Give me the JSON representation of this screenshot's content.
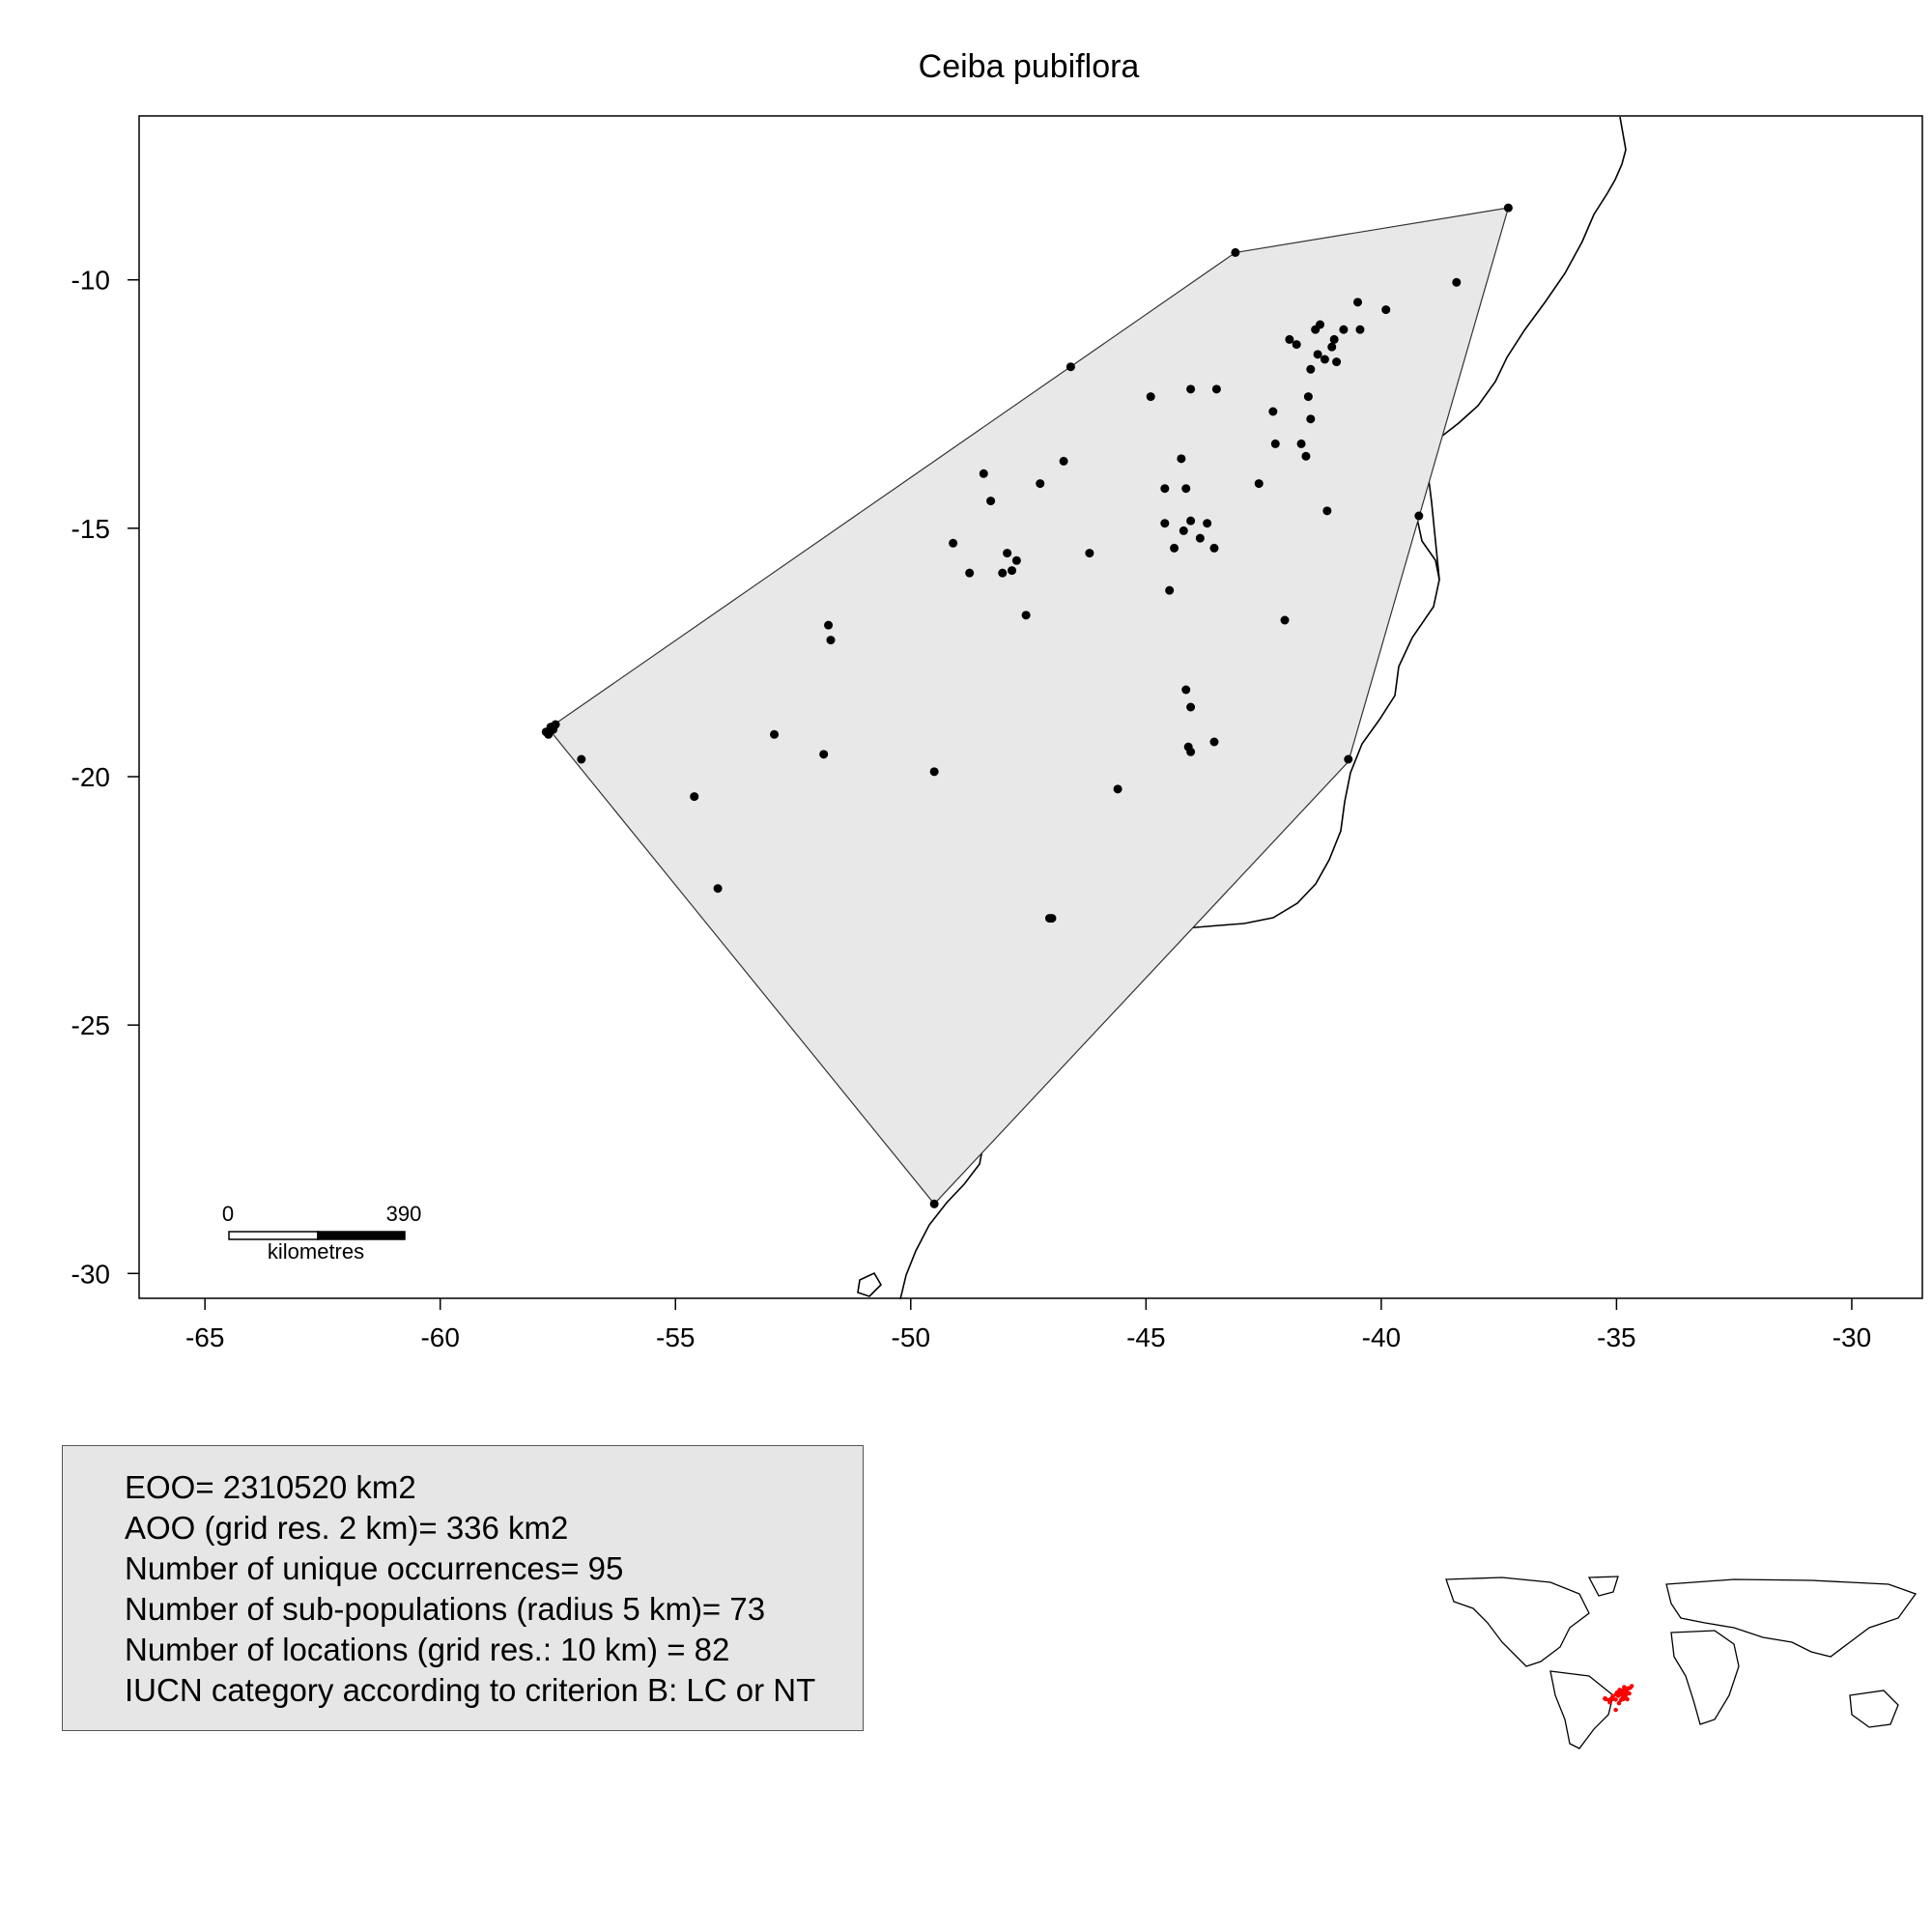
{
  "title": "Ceiba pubiflora",
  "axes": {
    "x_ticks": [
      "-65",
      "-60",
      "-55",
      "-50",
      "-45",
      "-40",
      "-35",
      "-30"
    ],
    "y_ticks": [
      "-10",
      "-15",
      "-20",
      "-25",
      "-30"
    ],
    "xlim": [
      -66.4,
      -28.5
    ],
    "ylim": [
      -30.5,
      -6.7
    ]
  },
  "scale_bar": {
    "start_label": "0",
    "end_label": "390",
    "unit_label": "kilometres"
  },
  "stats": {
    "eoo": "EOO= 2310520 km2",
    "aoo": "AOO (grid res. 2 km)= 336 km2",
    "unique_occurrences": "Number of unique occurrences= 95",
    "subpopulations": "Number of sub-populations (radius 5 km)= 73",
    "locations": "Number of locations (grid res.: 10  km) = 82",
    "iucn": "IUCN category according to criterion B: LC or NT"
  },
  "colors": {
    "hull_fill": "#e8e8e8",
    "hull_stroke": "#333333",
    "points": "#000000",
    "inset_points": "#ff0000",
    "stats_bg": "#e6e6e6"
  },
  "chart_data": {
    "type": "scatter",
    "title": "Ceiba pubiflora",
    "xlabel": "",
    "ylabel": "",
    "xlim": [
      -66.4,
      -28.5
    ],
    "ylim": [
      -30.5,
      -6.7
    ],
    "hull": [
      [
        -43.1,
        -9.45
      ],
      [
        -37.3,
        -8.55
      ],
      [
        -40.7,
        -19.7
      ],
      [
        -49.5,
        -28.6
      ],
      [
        -57.6,
        -19.15
      ],
      [
        -57.5,
        -18.9
      ]
    ],
    "points": [
      [
        -43.1,
        -9.45
      ],
      [
        -37.3,
        -8.55
      ],
      [
        -38.4,
        -10.05
      ],
      [
        -40.5,
        -10.45
      ],
      [
        -39.9,
        -10.6
      ],
      [
        -40.45,
        -11.0
      ],
      [
        -40.8,
        -11.0
      ],
      [
        -41.3,
        -10.9
      ],
      [
        -41.4,
        -11.0
      ],
      [
        -41.0,
        -11.2
      ],
      [
        -41.05,
        -11.35
      ],
      [
        -41.8,
        -11.3
      ],
      [
        -41.95,
        -11.2
      ],
      [
        -41.35,
        -11.5
      ],
      [
        -41.2,
        -11.6
      ],
      [
        -40.95,
        -11.65
      ],
      [
        -41.5,
        -11.8
      ],
      [
        -46.6,
        -11.75
      ],
      [
        -44.9,
        -12.35
      ],
      [
        -44.05,
        -12.2
      ],
      [
        -43.5,
        -12.2
      ],
      [
        -41.55,
        -12.35
      ],
      [
        -42.3,
        -12.65
      ],
      [
        -41.5,
        -12.8
      ],
      [
        -42.25,
        -13.3
      ],
      [
        -41.7,
        -13.3
      ],
      [
        -41.6,
        -13.55
      ],
      [
        -44.25,
        -13.6
      ],
      [
        -46.75,
        -13.65
      ],
      [
        -48.45,
        -13.9
      ],
      [
        -47.25,
        -14.1
      ],
      [
        -42.6,
        -14.1
      ],
      [
        -44.6,
        -14.2
      ],
      [
        -44.15,
        -14.2
      ],
      [
        -48.3,
        -14.45
      ],
      [
        -41.15,
        -14.65
      ],
      [
        -39.2,
        -14.75
      ],
      [
        -44.05,
        -14.85
      ],
      [
        -43.7,
        -14.9
      ],
      [
        -44.6,
        -14.9
      ],
      [
        -44.2,
        -15.05
      ],
      [
        -43.85,
        -15.2
      ],
      [
        -49.1,
        -15.3
      ],
      [
        -44.4,
        -15.4
      ],
      [
        -43.55,
        -15.4
      ],
      [
        -47.95,
        -15.5
      ],
      [
        -46.2,
        -15.5
      ],
      [
        -47.75,
        -15.65
      ],
      [
        -47.85,
        -15.85
      ],
      [
        -48.05,
        -15.9
      ],
      [
        -48.75,
        -15.9
      ],
      [
        -44.5,
        -16.25
      ],
      [
        -47.55,
        -16.75
      ],
      [
        -42.05,
        -16.85
      ],
      [
        -51.75,
        -16.95
      ],
      [
        -51.7,
        -17.25
      ],
      [
        -44.15,
        -18.25
      ],
      [
        -44.05,
        -18.6
      ],
      [
        -57.55,
        -18.95
      ],
      [
        -57.65,
        -19.0
      ],
      [
        -57.6,
        -19.05
      ],
      [
        -57.7,
        -19.15
      ],
      [
        -57.75,
        -19.1
      ],
      [
        -52.9,
        -19.15
      ],
      [
        -43.55,
        -19.3
      ],
      [
        -44.1,
        -19.4
      ],
      [
        -44.05,
        -19.5
      ],
      [
        -51.85,
        -19.55
      ],
      [
        -57.0,
        -19.65
      ],
      [
        -40.7,
        -19.65
      ],
      [
        -49.5,
        -19.9
      ],
      [
        -45.6,
        -20.25
      ],
      [
        -54.6,
        -20.4
      ],
      [
        -54.1,
        -22.25
      ],
      [
        -47.05,
        -22.85
      ],
      [
        -47.0,
        -22.85
      ],
      [
        -49.5,
        -28.6
      ]
    ]
  }
}
